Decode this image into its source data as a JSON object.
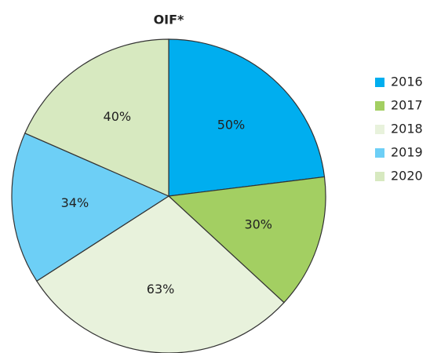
{
  "chart_data": {
    "type": "pie",
    "title": "OIF*",
    "categories": [
      "2016",
      "2017",
      "2018",
      "2019",
      "2020"
    ],
    "values": [
      50,
      30,
      63,
      34,
      40
    ],
    "value_labels": [
      "50%",
      "30%",
      "63%",
      "34%",
      "40%"
    ],
    "colors": [
      "#00aeef",
      "#a3cf62",
      "#e8f2dc",
      "#6dcff6",
      "#d7e9c0"
    ],
    "legend": "right"
  }
}
